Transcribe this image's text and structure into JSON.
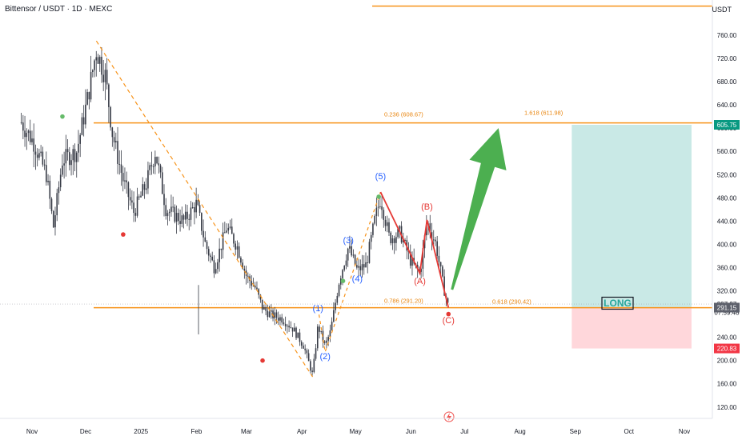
{
  "header": {
    "symbol_title": "Bittensor / USDT · 1D · MEXC",
    "currency": "USDT"
  },
  "colors": {
    "candle": "#363a45",
    "fib_line": "#f7931a",
    "fib_text": "#e8850f",
    "wave_blue": "#2962ff",
    "wave_red": "#e53935",
    "green_arrow": "#4caf50",
    "price_tag_green": "#089981",
    "price_tag_red": "#f23645",
    "price_tag_gray": "#5d606b",
    "profit_zone": "#b2dfdb",
    "loss_zone": "#ffcdd2"
  },
  "chart_data": {
    "type": "candlestick",
    "y_range": [
      90,
      800
    ],
    "y_ticks": [
      "120.00",
      "160.00",
      "200.00",
      "240.00",
      "280.00",
      "320.00",
      "360.00",
      "400.00",
      "440.00",
      "480.00",
      "520.00",
      "560.00",
      "600.00",
      "640.00",
      "680.00",
      "720.00",
      "760.00"
    ],
    "x_ticks": [
      "Nov",
      "Dec",
      "2025",
      "Feb",
      "Mar",
      "Apr",
      "May",
      "Jun",
      "Jul",
      "Aug",
      "Sep",
      "Oct",
      "Nov"
    ],
    "price_path": [
      [
        "2024-10-26",
        610
      ],
      [
        "2024-11-02",
        575
      ],
      [
        "2024-11-09",
        520
      ],
      [
        "2024-11-13",
        430
      ],
      [
        "2024-11-18",
        545
      ],
      [
        "2024-11-26",
        560
      ],
      [
        "2024-12-02",
        650
      ],
      [
        "2024-12-07",
        735
      ],
      [
        "2024-12-12",
        690
      ],
      [
        "2024-12-16",
        590
      ],
      [
        "2024-12-22",
        510
      ],
      [
        "2024-12-28",
        455
      ],
      [
        "2025-01-04",
        505
      ],
      [
        "2025-01-09",
        560
      ],
      [
        "2025-01-15",
        460
      ],
      [
        "2025-01-25",
        440
      ],
      [
        "2025-02-01",
        470
      ],
      [
        "2025-02-06",
        400
      ],
      [
        "2025-02-11",
        360
      ],
      [
        "2025-02-18",
        430
      ],
      [
        "2025-02-24",
        395
      ],
      [
        "2025-03-01",
        345
      ],
      [
        "2025-03-06",
        325
      ],
      [
        "2025-03-10",
        290
      ],
      [
        "2025-03-15",
        278
      ],
      [
        "2025-03-21",
        272
      ],
      [
        "2025-03-27",
        255
      ],
      [
        "2025-04-02",
        225
      ],
      [
        "2025-04-07",
        175
      ],
      [
        "2025-04-10",
        260
      ],
      [
        "2025-04-14",
        225
      ],
      [
        "2025-04-17",
        250
      ],
      [
        "2025-04-22",
        340
      ],
      [
        "2025-04-27",
        395
      ],
      [
        "2025-05-02",
        355
      ],
      [
        "2025-05-07",
        365
      ],
      [
        "2025-05-12",
        445
      ],
      [
        "2025-05-15",
        480
      ],
      [
        "2025-05-20",
        410
      ],
      [
        "2025-05-26",
        420
      ],
      [
        "2025-06-01",
        370
      ],
      [
        "2025-06-06",
        350
      ],
      [
        "2025-06-10",
        440
      ],
      [
        "2025-06-15",
        400
      ],
      [
        "2025-06-19",
        330
      ],
      [
        "2025-06-22",
        291
      ]
    ],
    "fib_levels": [
      {
        "label": "0.236 (608.67)",
        "value": 608.67
      },
      {
        "label": "1.618 (611.98)",
        "value": 611.98
      },
      {
        "label": "0.786 (291.20)",
        "value": 291.2
      },
      {
        "label": "0.618 (290.42)",
        "value": 290.42
      }
    ],
    "top_line": 810,
    "wave_labels": [
      {
        "label": "(1)",
        "date": "2025-04-10",
        "value": 285,
        "series": "impulse"
      },
      {
        "label": "(2)",
        "date": "2025-04-14",
        "value": 202,
        "series": "impulse"
      },
      {
        "label": "(3)",
        "date": "2025-04-27",
        "value": 402,
        "series": "impulse"
      },
      {
        "label": "(4)",
        "date": "2025-05-02",
        "value": 336,
        "series": "impulse"
      },
      {
        "label": "(5)",
        "date": "2025-05-15",
        "value": 512,
        "series": "impulse"
      },
      {
        "label": "(A)",
        "date": "2025-06-06",
        "value": 332,
        "series": "correction"
      },
      {
        "label": "(B)",
        "date": "2025-06-10",
        "value": 460,
        "series": "correction"
      },
      {
        "label": "(C)",
        "date": "2025-06-22",
        "value": 264,
        "series": "correction"
      }
    ],
    "correction_path": [
      [
        "2025-05-15",
        490
      ],
      [
        "2025-06-06",
        350
      ],
      [
        "2025-06-10",
        442
      ],
      [
        "2025-06-22",
        291
      ]
    ],
    "dashed_trend": [
      [
        "2024-12-07",
        750
      ],
      [
        "2025-04-07",
        172
      ]
    ],
    "dashed_wave": [
      [
        "2025-04-10",
        290
      ],
      [
        "2025-04-14",
        215
      ],
      [
        "2025-05-15",
        490
      ]
    ],
    "markers": [
      {
        "date": "2024-11-18",
        "value": 620,
        "color": "green"
      },
      {
        "date": "2024-12-22",
        "value": 417,
        "color": "red"
      },
      {
        "date": "2025-03-10",
        "value": 200,
        "color": "red"
      },
      {
        "date": "2025-04-24",
        "value": 337,
        "color": "green"
      },
      {
        "date": "2025-05-14",
        "value": 482,
        "color": "green"
      },
      {
        "date": "2025-06-22",
        "value": 280,
        "color": "red"
      }
    ],
    "long_position": {
      "label": "LONG",
      "entry": 291.15,
      "target": 605.75,
      "stop": 220.83,
      "start": "2025-08-30",
      "end": "2025-11-05"
    },
    "arrow": {
      "from": [
        "2025-06-24",
        322
      ],
      "to": [
        "2025-07-20",
        600
      ]
    },
    "axis_tags": [
      {
        "text": "605.75",
        "value": 605.75,
        "style": "green"
      },
      {
        "text": "297.27",
        "value": 297.27,
        "style": "dark"
      },
      {
        "text": "07:59:48",
        "value": 283,
        "style": "dark"
      },
      {
        "text": "291.15",
        "value": 291.15,
        "style": "gray"
      },
      {
        "text": "220.83",
        "value": 220.83,
        "style": "red"
      }
    ],
    "current_price": 297.27
  }
}
